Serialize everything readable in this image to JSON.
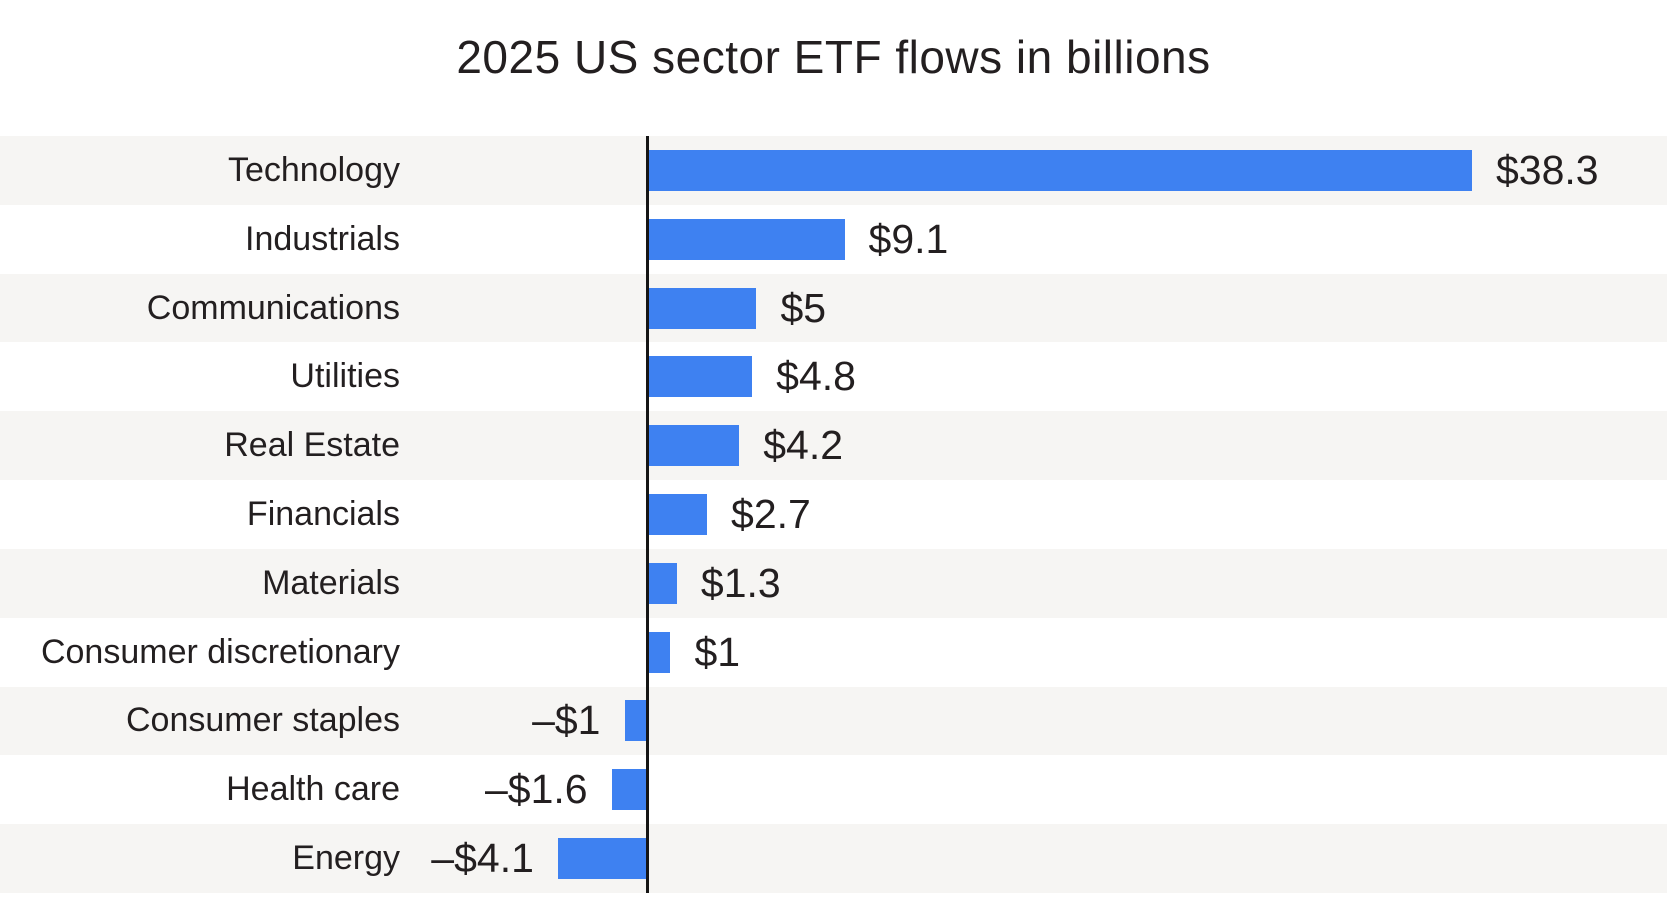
{
  "chart_data": {
    "type": "bar",
    "orientation": "horizontal",
    "title": "2025 US sector ETF flows in billions",
    "xlabel": "",
    "ylabel": "",
    "categories": [
      "Technology",
      "Industrials",
      "Communications",
      "Utilities",
      "Real Estate",
      "Financials",
      "Materials",
      "Consumer discretionary",
      "Consumer staples",
      "Health care",
      "Energy"
    ],
    "values": [
      38.3,
      9.1,
      5,
      4.8,
      4.2,
      2.7,
      1.3,
      1,
      -1,
      -1.6,
      -4.1
    ],
    "value_labels": [
      "$38.3",
      "$9.1",
      "$5",
      "$4.8",
      "$4.2",
      "$2.7",
      "$1.3",
      "$1",
      "–$1",
      "–$1.6",
      "–$4.1"
    ],
    "units": "billions USD",
    "xlim": [
      -5,
      42
    ],
    "grid": "off",
    "legend": "none",
    "row_striping": "alternating, first row shaded",
    "colors": {
      "bar": "#3e81f1",
      "stripe": "#f6f5f3",
      "text": "#231f20",
      "axis": "#151515",
      "background": "#ffffff"
    }
  }
}
